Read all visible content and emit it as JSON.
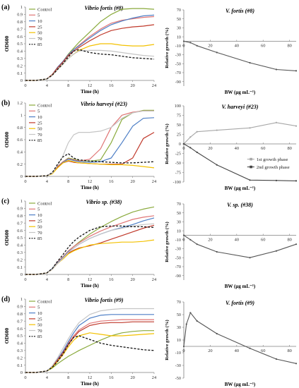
{
  "colors": {
    "Control": "#8aaa3c",
    "5": "#e07575",
    "10": "#4e7fc6",
    "25": "#c0392b",
    "50": "#f3c100",
    "70": "#c5c5c5",
    "85": "#111111",
    "relative": "#555555",
    "first_phase": "#a7a7a7",
    "second_phase": "#444444"
  },
  "chart_data": [
    {
      "type": "line",
      "panel": "(a)",
      "title": "Vibrio fortis (#8)",
      "xlabel": "Time (h)",
      "ylabel": "OD600",
      "xlim": [
        0,
        24
      ],
      "ylim": [
        0,
        1
      ],
      "xticks": [
        0,
        4,
        8,
        12,
        16,
        20,
        24
      ],
      "yticks": [
        0,
        0.1,
        0.2,
        0.3,
        0.4,
        0.5,
        0.6,
        0.7,
        0.8,
        0.9,
        1
      ],
      "legend": "top-left",
      "grid": false,
      "x": [
        0,
        2,
        4,
        5,
        6,
        7,
        8,
        9,
        10,
        12,
        14,
        16,
        18,
        20,
        22,
        24
      ],
      "series": [
        {
          "name": "Control",
          "values": [
            0,
            0,
            0.02,
            0.08,
            0.18,
            0.26,
            0.36,
            0.44,
            0.52,
            0.66,
            0.8,
            0.9,
            0.97,
            0.98,
            0.98,
            0.97
          ]
        },
        {
          "name": "5",
          "values": [
            0,
            0,
            0.02,
            0.08,
            0.18,
            0.26,
            0.35,
            0.42,
            0.48,
            0.6,
            0.7,
            0.78,
            0.82,
            0.84,
            0.86,
            0.87
          ]
        },
        {
          "name": "10",
          "values": [
            0,
            0,
            0.02,
            0.08,
            0.18,
            0.26,
            0.35,
            0.42,
            0.47,
            0.58,
            0.68,
            0.76,
            0.81,
            0.85,
            0.88,
            0.89
          ]
        },
        {
          "name": "25",
          "values": [
            0,
            0,
            0.02,
            0.08,
            0.17,
            0.25,
            0.34,
            0.4,
            0.45,
            0.54,
            0.62,
            0.68,
            0.71,
            0.73,
            0.74,
            0.76
          ]
        },
        {
          "name": "50",
          "values": [
            0,
            0,
            0.02,
            0.07,
            0.15,
            0.22,
            0.3,
            0.36,
            0.41,
            0.47,
            0.5,
            0.5,
            0.48,
            0.47,
            0.47,
            0.49
          ]
        },
        {
          "name": "70",
          "values": [
            0,
            0,
            0.02,
            0.07,
            0.15,
            0.22,
            0.3,
            0.36,
            0.4,
            0.41,
            0.41,
            0.4,
            0.38,
            0.36,
            0.34,
            0.33
          ]
        },
        {
          "name": "85",
          "values": [
            0,
            0,
            0.02,
            0.07,
            0.15,
            0.23,
            0.32,
            0.4,
            0.42,
            0.38,
            0.36,
            0.35,
            0.33,
            0.31,
            0.3,
            0.29
          ]
        }
      ]
    },
    {
      "type": "line",
      "panel": "(a)",
      "title": "V. fortis (#8)",
      "xlabel": "BW (µg mL⁻¹)",
      "ylabel": "Relative growth (%)",
      "xlim": [
        0,
        85
      ],
      "ylim": [
        -100,
        70
      ],
      "xticks": [
        0,
        20,
        40,
        60,
        80
      ],
      "yticks": [
        70,
        50,
        30,
        10,
        -10,
        -30,
        -50,
        -70,
        -90
      ],
      "series": [
        {
          "name": "",
          "x": [
            0,
            5,
            10,
            25,
            50,
            70,
            85
          ],
          "values": [
            0,
            -3,
            -10,
            -25,
            -48,
            -63,
            -66
          ]
        }
      ]
    },
    {
      "type": "line",
      "panel": "(b)",
      "title": "Vibrio harveyi (#23)",
      "xlabel": "Time (h)",
      "ylabel": "OD600",
      "xlim": [
        0,
        24
      ],
      "ylim": [
        0,
        1.2
      ],
      "xticks": [
        0,
        4,
        8,
        12,
        16,
        20,
        24
      ],
      "yticks": [
        0,
        0.2,
        0.4,
        0.6,
        0.8,
        1,
        1.2
      ],
      "legend": "top-left",
      "grid": false,
      "x": [
        0,
        2,
        4,
        5,
        6,
        7,
        8,
        9,
        10,
        12,
        14,
        16,
        18,
        20,
        22,
        24
      ],
      "series": [
        {
          "name": "Control",
          "values": [
            0,
            0,
            0.01,
            0.05,
            0.16,
            0.24,
            0.3,
            0.28,
            0.26,
            0.25,
            0.27,
            0.55,
            0.93,
            1.04,
            1.08,
            1.08
          ]
        },
        {
          "name": "5",
          "values": [
            0,
            0,
            0.01,
            0.05,
            0.16,
            0.24,
            0.29,
            0.27,
            0.25,
            0.28,
            0.45,
            0.8,
            1.0,
            1.05,
            1.07,
            1.07
          ]
        },
        {
          "name": "10",
          "values": [
            0,
            0,
            0.01,
            0.05,
            0.15,
            0.23,
            0.28,
            0.26,
            0.24,
            0.23,
            0.24,
            0.3,
            0.55,
            0.82,
            0.95,
            0.96
          ]
        },
        {
          "name": "25",
          "values": [
            0,
            0,
            0.01,
            0.05,
            0.15,
            0.22,
            0.25,
            0.23,
            0.22,
            0.21,
            0.2,
            0.2,
            0.2,
            0.3,
            0.62,
            0.72
          ]
        },
        {
          "name": "50",
          "values": [
            0,
            0,
            0.01,
            0.04,
            0.14,
            0.22,
            0.26,
            0.24,
            0.22,
            0.21,
            0.2,
            0.19,
            0.19,
            0.18,
            0.16,
            0.14
          ]
        },
        {
          "name": "70",
          "values": [
            0,
            0,
            0.01,
            0.05,
            0.18,
            0.34,
            0.55,
            0.68,
            0.72,
            0.72,
            0.74,
            0.8,
            0.95,
            1.04,
            1.07,
            1.07
          ]
        },
        {
          "name": "85",
          "values": [
            0,
            0,
            0.01,
            0.06,
            0.2,
            0.32,
            0.37,
            0.3,
            0.27,
            0.25,
            0.24,
            0.23,
            0.22,
            0.22,
            0.23,
            0.24
          ]
        }
      ]
    },
    {
      "type": "line",
      "panel": "(b)",
      "title": "V. harveyi (#23)",
      "xlabel": "BW (µg mL⁻¹)",
      "ylabel": "Relative growth (%)",
      "xlim": [
        0,
        85
      ],
      "ylim": [
        -100,
        100
      ],
      "xticks": [
        0,
        20,
        40,
        60,
        80
      ],
      "yticks": [
        100,
        75,
        50,
        25,
        0,
        -25,
        -50,
        -75,
        -100
      ],
      "legend": "lower-right",
      "series": [
        {
          "name": "1st growth phase",
          "x": [
            0,
            5,
            10,
            25,
            50,
            70,
            85
          ],
          "values": [
            0,
            18,
            32,
            36,
            42,
            56,
            47
          ]
        },
        {
          "name": "2nd growth phase",
          "x": [
            0,
            5,
            10,
            25,
            50,
            70,
            85
          ],
          "values": [
            0,
            -10,
            -22,
            -55,
            -95,
            -96,
            -97
          ]
        }
      ]
    },
    {
      "type": "line",
      "panel": "(c)",
      "title": "Vibrio sp. (#38)",
      "xlabel": "Time (h)",
      "ylabel": "OD600",
      "xlim": [
        0,
        24
      ],
      "ylim": [
        0,
        1
      ],
      "xticks": [
        0,
        4,
        8,
        12,
        16,
        20,
        24
      ],
      "yticks": [
        0,
        0.1,
        0.2,
        0.3,
        0.4,
        0.5,
        0.6,
        0.7,
        0.8,
        0.9,
        1
      ],
      "legend": "top-left",
      "grid": false,
      "x": [
        0,
        2,
        4,
        5,
        6,
        7,
        8,
        9,
        10,
        12,
        14,
        16,
        18,
        20,
        22,
        24
      ],
      "series": [
        {
          "name": "Control",
          "values": [
            0,
            0,
            0.02,
            0.08,
            0.17,
            0.24,
            0.32,
            0.38,
            0.44,
            0.55,
            0.64,
            0.72,
            0.79,
            0.85,
            0.89,
            0.92
          ]
        },
        {
          "name": "5",
          "values": [
            0,
            0,
            0.02,
            0.08,
            0.17,
            0.24,
            0.32,
            0.38,
            0.43,
            0.52,
            0.59,
            0.65,
            0.7,
            0.75,
            0.78,
            0.8
          ]
        },
        {
          "name": "10",
          "values": [
            0,
            0,
            0.02,
            0.08,
            0.16,
            0.23,
            0.31,
            0.36,
            0.41,
            0.49,
            0.55,
            0.6,
            0.64,
            0.68,
            0.73,
            0.77
          ]
        },
        {
          "name": "25",
          "values": [
            0,
            0,
            0.02,
            0.07,
            0.15,
            0.22,
            0.29,
            0.33,
            0.36,
            0.39,
            0.43,
            0.48,
            0.53,
            0.58,
            0.63,
            0.67
          ]
        },
        {
          "name": "50",
          "values": [
            0,
            0,
            0.02,
            0.07,
            0.15,
            0.21,
            0.28,
            0.32,
            0.35,
            0.4,
            0.42,
            0.43,
            0.44,
            0.44,
            0.45,
            0.47
          ]
        },
        {
          "name": "70",
          "values": [
            0,
            0,
            0.02,
            0.07,
            0.15,
            0.22,
            0.3,
            0.36,
            0.41,
            0.49,
            0.55,
            0.6,
            0.63,
            0.66,
            0.68,
            0.69
          ]
        },
        {
          "name": "85",
          "values": [
            0,
            0,
            0.02,
            0.08,
            0.18,
            0.27,
            0.37,
            0.45,
            0.51,
            0.6,
            0.65,
            0.66,
            0.66,
            0.65,
            0.65,
            0.64
          ]
        }
      ]
    },
    {
      "type": "line",
      "panel": "(c)",
      "title": "V. sp. (#38)",
      "xlabel": "BW (µg mL⁻¹)",
      "ylabel": "Relative growth (%)",
      "xlim": [
        0,
        85
      ],
      "ylim": [
        -100,
        70
      ],
      "xticks": [
        0,
        20,
        40,
        60,
        80
      ],
      "yticks": [
        70,
        50,
        30,
        10,
        -10,
        -30,
        -50,
        -70,
        -90
      ],
      "series": [
        {
          "name": "",
          "x": [
            0,
            5,
            10,
            25,
            50,
            70,
            85
          ],
          "values": [
            0,
            -10,
            -20,
            -37,
            -50,
            -35,
            -20
          ]
        }
      ]
    },
    {
      "type": "line",
      "panel": "(d)",
      "title": "Vibrio fortis (#9)",
      "xlabel": "Time (h)",
      "ylabel": "OD600",
      "xlim": [
        0,
        24
      ],
      "ylim": [
        0,
        1
      ],
      "xticks": [
        0,
        4,
        8,
        12,
        16,
        20,
        24
      ],
      "yticks": [
        0,
        0.1,
        0.2,
        0.3,
        0.4,
        0.5,
        0.6,
        0.7,
        0.8,
        0.9,
        1
      ],
      "legend": "top-left",
      "grid": false,
      "x": [
        0,
        2,
        4,
        5,
        6,
        7,
        8,
        9,
        10,
        12,
        14,
        16,
        18,
        20,
        22,
        24
      ],
      "series": [
        {
          "name": "Control",
          "values": [
            0,
            0,
            0.02,
            0.06,
            0.12,
            0.17,
            0.22,
            0.26,
            0.3,
            0.37,
            0.44,
            0.5,
            0.54,
            0.56,
            0.57,
            0.57
          ]
        },
        {
          "name": "5",
          "values": [
            0,
            0,
            0.02,
            0.08,
            0.18,
            0.28,
            0.4,
            0.5,
            0.58,
            0.67,
            0.7,
            0.71,
            0.72,
            0.72,
            0.72,
            0.72
          ]
        },
        {
          "name": "10",
          "values": [
            0,
            0,
            0.02,
            0.08,
            0.18,
            0.29,
            0.42,
            0.54,
            0.64,
            0.74,
            0.78,
            0.79,
            0.79,
            0.79,
            0.79,
            0.79
          ]
        },
        {
          "name": "25",
          "values": [
            0,
            0,
            0.02,
            0.08,
            0.17,
            0.27,
            0.38,
            0.48,
            0.56,
            0.64,
            0.67,
            0.68,
            0.68,
            0.69,
            0.69,
            0.69
          ]
        },
        {
          "name": "50",
          "values": [
            0,
            0,
            0.02,
            0.07,
            0.15,
            0.24,
            0.35,
            0.44,
            0.5,
            0.54,
            0.52,
            0.5,
            0.5,
            0.51,
            0.52,
            0.53
          ]
        },
        {
          "name": "70",
          "values": [
            0,
            0,
            0.02,
            0.09,
            0.2,
            0.33,
            0.46,
            0.58,
            0.68,
            0.79,
            0.84,
            0.86,
            0.87,
            0.87,
            0.87,
            0.87
          ]
        },
        {
          "name": "85",
          "values": [
            0,
            0,
            0.02,
            0.07,
            0.15,
            0.25,
            0.38,
            0.48,
            0.5,
            0.45,
            0.4,
            0.37,
            0.35,
            0.33,
            0.31,
            0.3
          ]
        }
      ]
    },
    {
      "type": "line",
      "panel": "(d)",
      "title": "V. fortis (#9)",
      "xlabel": "BW (µg mL⁻¹)",
      "ylabel": "Relative growth (%)",
      "xlim": [
        0,
        85
      ],
      "ylim": [
        -50,
        70
      ],
      "xticks": [
        0,
        20,
        40,
        60,
        80
      ],
      "yticks": [
        70,
        50,
        30,
        10,
        -10,
        -30,
        -50
      ],
      "series": [
        {
          "name": "",
          "x": [
            0,
            2,
            5,
            10,
            25,
            50,
            70,
            85
          ],
          "values": [
            0,
            35,
            53,
            40,
            20,
            -3,
            -20,
            -27
          ]
        }
      ]
    }
  ]
}
